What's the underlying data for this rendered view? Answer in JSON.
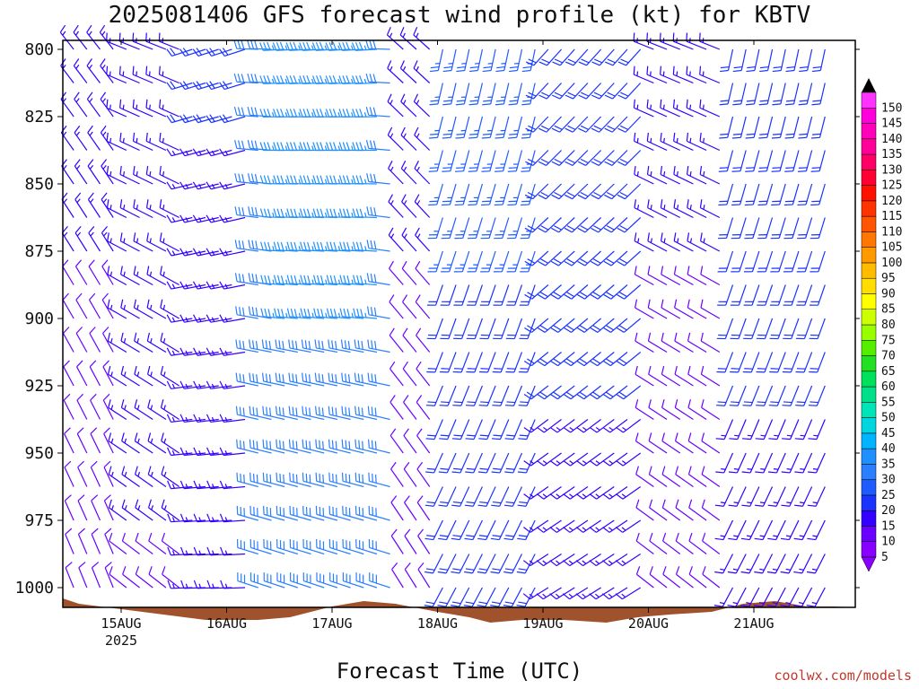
{
  "header": {
    "title": "2025081406 GFS forecast wind profile (kt) for KBTV"
  },
  "footer": {
    "xaxis_title": "Forecast Time (UTC)",
    "credit": "coolwx.com/models"
  },
  "chart_data": {
    "type": "wind-barb-profile",
    "title": "2025081406 GFS forecast wind profile (kt) for KBTV",
    "xlabel": "Forecast Time (UTC)",
    "ylabel": "",
    "y_unit": "hPa (pressure level)",
    "y_levels": [
      800,
      825,
      850,
      875,
      900,
      925,
      950,
      975,
      1000
    ],
    "y_tick_labels": [
      "800",
      "825",
      "850",
      "875",
      "900",
      "925",
      "950",
      "975",
      "1000"
    ],
    "ylim": [
      800,
      1020
    ],
    "y_inverted": true,
    "x_range_days": [
      14.25,
      21.75
    ],
    "x_ticks": [
      {
        "label": "15AUG",
        "sub": "2025",
        "day": 15.0
      },
      {
        "label": "16AUG",
        "sub": "",
        "day": 16.0
      },
      {
        "label": "17AUG",
        "sub": "",
        "day": 17.0
      },
      {
        "label": "18AUG",
        "sub": "",
        "day": 18.0
      },
      {
        "label": "19AUG",
        "sub": "",
        "day": 19.0
      },
      {
        "label": "20AUG",
        "sub": "",
        "day": 20.0
      },
      {
        "label": "21AUG",
        "sub": "",
        "day": 21.0
      }
    ],
    "wind_barbs": {
      "time_step_hours": 3,
      "levels_hpa": [
        800,
        812.5,
        825,
        837.5,
        850,
        862.5,
        875,
        887.5,
        900,
        912.5,
        925,
        937.5,
        950,
        962.5,
        975,
        987.5,
        1000
      ],
      "regimes": [
        {
          "from_day": 14.25,
          "to_day": 15.0,
          "from_deg": 330,
          "speed_kt": 12
        },
        {
          "from_day": 15.0,
          "to_day": 15.6,
          "from_deg": 300,
          "speed_kt": 14
        },
        {
          "from_day": 15.6,
          "to_day": 16.2,
          "from_deg": 260,
          "speed_kt": 16
        },
        {
          "from_day": 16.2,
          "to_day": 17.6,
          "from_deg": 280,
          "speed_kt": 30
        },
        {
          "from_day": 17.6,
          "to_day": 18.0,
          "from_deg": 320,
          "speed_kt": 12
        },
        {
          "from_day": 18.0,
          "to_day": 19.0,
          "from_deg": 200,
          "speed_kt": 22
        },
        {
          "from_day": 19.0,
          "to_day": 20.0,
          "from_deg": 230,
          "speed_kt": 18
        },
        {
          "from_day": 20.0,
          "to_day": 20.7,
          "from_deg": 300,
          "speed_kt": 12
        },
        {
          "from_day": 20.7,
          "to_day": 21.75,
          "from_deg": 200,
          "speed_kt": 18
        }
      ],
      "jet": {
        "day_min": 16.5,
        "day_max": 17.5,
        "level_max_hpa": 900,
        "from_deg": 275,
        "speed_kt": 35
      }
    },
    "terrain": {
      "color": "#a0522d",
      "surface_pressure_hpa": [
        [
          14.25,
          1004
        ],
        [
          14.6,
          1006
        ],
        [
          15.0,
          1008
        ],
        [
          15.4,
          1010
        ],
        [
          15.8,
          1012
        ],
        [
          16.3,
          1012
        ],
        [
          16.6,
          1011
        ],
        [
          17.0,
          1007
        ],
        [
          17.3,
          1005
        ],
        [
          17.6,
          1006
        ],
        [
          18.0,
          1009
        ],
        [
          18.3,
          1011
        ],
        [
          18.5,
          1013
        ],
        [
          18.8,
          1012
        ],
        [
          19.2,
          1012
        ],
        [
          19.6,
          1013
        ],
        [
          19.9,
          1011
        ],
        [
          20.2,
          1010
        ],
        [
          20.6,
          1009
        ],
        [
          20.9,
          1006
        ],
        [
          21.2,
          1005
        ],
        [
          21.5,
          1007
        ],
        [
          21.75,
          1007
        ]
      ]
    },
    "colorbar": {
      "unit": "kt",
      "values": [
        5,
        10,
        15,
        20,
        25,
        30,
        35,
        40,
        45,
        50,
        55,
        60,
        65,
        70,
        75,
        80,
        85,
        90,
        95,
        100,
        105,
        110,
        115,
        120,
        125,
        130,
        135,
        140,
        145,
        150
      ],
      "colors": [
        "#8800ff",
        "#6a00ff",
        "#3300ff",
        "#1a33ff",
        "#1f5cff",
        "#2a7fff",
        "#1e90ff",
        "#00b4ff",
        "#00d5e0",
        "#00e5b8",
        "#00e08a",
        "#00e05a",
        "#20e020",
        "#55ee00",
        "#99ff00",
        "#ccff00",
        "#ffff00",
        "#ffdd00",
        "#ffbb00",
        "#ff9900",
        "#ff7700",
        "#ff5500",
        "#ff3300",
        "#ff1100",
        "#ff0033",
        "#ff0066",
        "#ff0099",
        "#ff00bb",
        "#ff00dd",
        "#ff33ff"
      ],
      "top_color": "#000000",
      "bottom_color": "#8800ff"
    }
  }
}
